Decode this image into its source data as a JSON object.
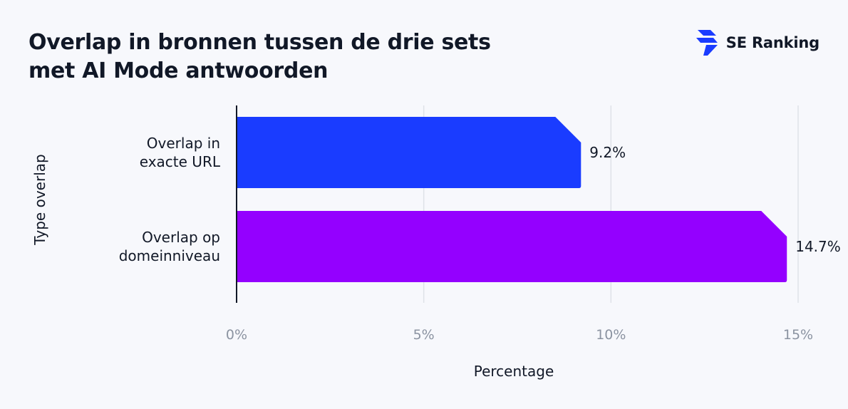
{
  "header": {
    "title_line1": "Overlap in bronnen tussen de drie sets",
    "title_line2": "met AI Mode antwoorden"
  },
  "logo": {
    "text": "SE Ranking",
    "icon": "se-ranking-logo-icon",
    "color": "#1a3cff"
  },
  "chart_data": {
    "type": "bar",
    "orientation": "horizontal",
    "categories": [
      [
        "Overlap in",
        "exacte URL"
      ],
      [
        "Overlap op",
        "domeinniveau"
      ]
    ],
    "values": [
      9.2,
      14.7
    ],
    "value_labels": [
      "9.2%",
      "14.7%"
    ],
    "colors": [
      "#1a3cff",
      "#9400ff"
    ],
    "xlabel": "Percentage",
    "ylabel": "Type overlap",
    "xlim": [
      0,
      15
    ],
    "xticks": [
      0,
      5,
      10,
      15
    ],
    "xtick_labels": [
      "0%",
      "5%",
      "10%",
      "15%"
    ],
    "grid": true
  }
}
